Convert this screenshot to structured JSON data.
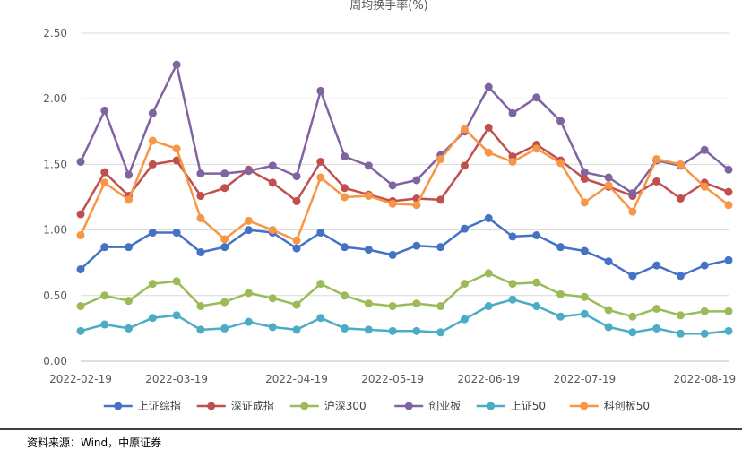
{
  "chart_data": {
    "type": "line",
    "title": "周均换手率(%)",
    "xlabel": "",
    "ylabel": "",
    "ylim": [
      0,
      2.5
    ],
    "yticks": [
      "0.00",
      "0.50",
      "1.00",
      "1.50",
      "2.00",
      "2.50"
    ],
    "grid": true,
    "legend_position": "bottom",
    "x_tick_labels": [
      "2022-02-19",
      "2022-03-19",
      "2022-04-19",
      "2022-05-19",
      "2022-06-19",
      "2022-07-19",
      "2022-08-19"
    ],
    "x_tick_index": [
      0,
      4,
      9,
      13,
      17,
      21,
      26
    ],
    "series": [
      {
        "name": "上证综指",
        "color": "#4472C4",
        "values": [
          0.7,
          0.87,
          0.87,
          0.98,
          0.98,
          0.83,
          0.87,
          1.0,
          0.98,
          0.86,
          0.98,
          0.87,
          0.85,
          0.81,
          0.88,
          0.87,
          1.01,
          1.09,
          0.95,
          0.96,
          0.87,
          0.84,
          0.76,
          0.65,
          0.73,
          0.65,
          0.73,
          0.77
        ]
      },
      {
        "name": "深证成指",
        "color": "#C0504D",
        "values": [
          1.12,
          1.44,
          1.26,
          1.5,
          1.53,
          1.26,
          1.32,
          1.46,
          1.36,
          1.22,
          1.52,
          1.32,
          1.27,
          1.22,
          1.24,
          1.23,
          1.49,
          1.78,
          1.56,
          1.65,
          1.53,
          1.39,
          1.33,
          1.26,
          1.37,
          1.24,
          1.36,
          1.29
        ]
      },
      {
        "name": "沪深300",
        "color": "#9BBB59",
        "values": [
          0.42,
          0.5,
          0.46,
          0.59,
          0.61,
          0.42,
          0.45,
          0.52,
          0.48,
          0.43,
          0.59,
          0.5,
          0.44,
          0.42,
          0.44,
          0.42,
          0.59,
          0.67,
          0.59,
          0.6,
          0.51,
          0.49,
          0.39,
          0.34,
          0.4,
          0.35,
          0.38,
          0.38
        ]
      },
      {
        "name": "创业板",
        "color": "#8064A2",
        "values": [
          1.52,
          1.91,
          1.42,
          1.89,
          2.26,
          1.43,
          1.43,
          1.45,
          1.49,
          1.41,
          2.06,
          1.56,
          1.49,
          1.34,
          1.38,
          1.57,
          1.75,
          2.09,
          1.89,
          2.01,
          1.83,
          1.44,
          1.4,
          1.28,
          1.53,
          1.49,
          1.61,
          1.46
        ]
      },
      {
        "name": "上证50",
        "color": "#4BACC6",
        "values": [
          0.23,
          0.28,
          0.25,
          0.33,
          0.35,
          0.24,
          0.25,
          0.3,
          0.26,
          0.24,
          0.33,
          0.25,
          0.24,
          0.23,
          0.23,
          0.22,
          0.32,
          0.42,
          0.47,
          0.42,
          0.34,
          0.36,
          0.26,
          0.22,
          0.25,
          0.21,
          0.21,
          0.23
        ]
      },
      {
        "name": "科创板50",
        "color": "#F79646",
        "values": [
          0.96,
          1.36,
          1.23,
          1.68,
          1.62,
          1.09,
          0.93,
          1.07,
          1.0,
          0.92,
          1.4,
          1.25,
          1.26,
          1.2,
          1.19,
          1.54,
          1.77,
          1.59,
          1.52,
          1.62,
          1.51,
          1.21,
          1.34,
          1.14,
          1.54,
          1.5,
          1.33,
          1.19
        ]
      }
    ]
  },
  "source_text": "资料来源：Wind，中原证券"
}
